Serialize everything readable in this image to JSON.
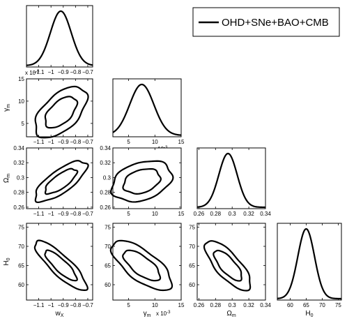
{
  "chart_data": {
    "type": "corner",
    "legend": {
      "label": "OHD+SNe+BAO+CMB",
      "placement": "top-right"
    },
    "params": [
      {
        "name": "w_X",
        "label_main": "w",
        "label_sub": "X",
        "range": [
          -1.2,
          -0.66
        ],
        "ticks": [
          -1.1,
          -1,
          -0.9,
          -0.8,
          -0.7
        ],
        "tick_labels": [
          "−1.1",
          "−1",
          "−0.9",
          "−0.8",
          "−0.7"
        ],
        "mean": -0.92,
        "sigma": 0.085
      },
      {
        "name": "gamma_m",
        "label_main": "γ",
        "label_sub": "m",
        "multiplier": "x 10",
        "multiplier_exp": "-3",
        "range": [
          2,
          15
        ],
        "ticks": [
          5,
          10,
          15
        ],
        "tick_labels": [
          "5",
          "10",
          "15"
        ],
        "mean": 7.5,
        "sigma": 2.3
      },
      {
        "name": "Omega_m",
        "label_main": "Ω",
        "label_sub": "m",
        "range": [
          0.258,
          0.34
        ],
        "ticks": [
          0.26,
          0.28,
          0.3,
          0.32,
          0.34
        ],
        "tick_labels": [
          "0.26",
          "0.28",
          "0.3",
          "0.32",
          "0.34"
        ],
        "mean": 0.295,
        "sigma": 0.011
      },
      {
        "name": "H_0",
        "label_main": "H",
        "label_sub": "0",
        "range": [
          56,
          76
        ],
        "ticks": [
          60,
          65,
          70,
          75
        ],
        "tick_labels": [
          "60",
          "65",
          "70",
          "75"
        ],
        "mean": 65,
        "sigma": 2.6
      }
    ],
    "correlations": {
      "0-1": 0.55,
      "0-2": 0.75,
      "0-3": -0.85,
      "1-2": 0.3,
      "1-3": -0.7,
      "2-3": -0.75
    },
    "contours": [
      "1-sigma",
      "2-sigma"
    ]
  }
}
